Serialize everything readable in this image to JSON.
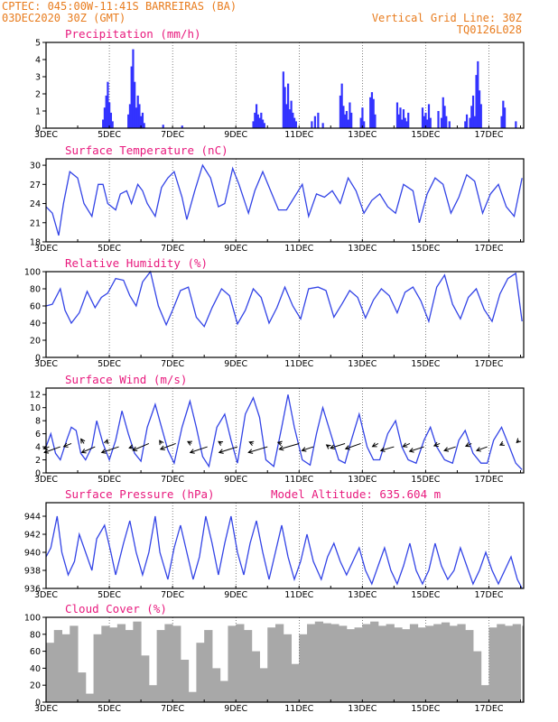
{
  "header": {
    "station": "CPTEC:  045:00W-11:41S  BARREIRAS (BA)",
    "run": "03DEC2020 30Z (GMT)",
    "grid_note": "Vertical Grid Line: 30Z",
    "code": "TQ0126L028"
  },
  "colors": {
    "series": "#3344e6",
    "bars": "#3333ff",
    "cloud": "#a8a8a8",
    "title": "#e8197d",
    "header": "#e87c1e"
  },
  "x_axis": {
    "labels": [
      "3DEC",
      "5DEC",
      "7DEC",
      "9DEC",
      "11DEC",
      "13DEC",
      "15DEC",
      "17DEC"
    ],
    "label_days": [
      0,
      2,
      4,
      6,
      8,
      10,
      12,
      14
    ],
    "range_days": [
      0,
      15.1
    ]
  },
  "chart_data": [
    {
      "type": "bar",
      "title": "Precipitation (mm/h)",
      "ylim": [
        0,
        5
      ],
      "yticks": [
        "0",
        "1",
        "2",
        "3",
        "4",
        "5"
      ],
      "x": [
        1.8,
        1.85,
        1.9,
        1.95,
        2.0,
        2.05,
        2.1,
        2.6,
        2.65,
        2.7,
        2.75,
        2.8,
        2.85,
        2.9,
        2.95,
        3.0,
        3.05,
        3.1,
        3.7,
        4.3,
        6.55,
        6.6,
        6.65,
        6.7,
        6.75,
        6.8,
        6.85,
        6.9,
        7.5,
        7.55,
        7.6,
        7.65,
        7.7,
        7.75,
        7.8,
        7.85,
        7.9,
        8.4,
        8.5,
        8.6,
        8.75,
        9.3,
        9.35,
        9.4,
        9.45,
        9.5,
        9.55,
        9.6,
        9.65,
        9.95,
        10.0,
        10.05,
        10.25,
        10.3,
        10.35,
        10.4,
        11.1,
        11.15,
        11.2,
        11.25,
        11.3,
        11.35,
        11.4,
        11.45,
        11.9,
        11.95,
        12.0,
        12.05,
        12.1,
        12.15,
        12.4,
        12.5,
        12.55,
        12.6,
        12.65,
        12.75,
        13.25,
        13.3,
        13.4,
        13.45,
        13.5,
        13.55,
        13.6,
        13.65,
        13.7,
        13.75,
        14.4,
        14.45,
        14.5,
        14.85
      ],
      "values": [
        0.5,
        1.2,
        1.9,
        2.7,
        1.5,
        0.9,
        0.4,
        0.8,
        1.4,
        3.6,
        4.6,
        2.7,
        1.2,
        1.9,
        1.4,
        0.7,
        0.9,
        0.3,
        0.2,
        0.15,
        0.4,
        0.9,
        1.4,
        0.8,
        0.6,
        0.9,
        0.5,
        0.3,
        3.3,
        2.4,
        1.4,
        2.6,
        1.1,
        1.6,
        0.9,
        0.6,
        0.4,
        0.4,
        0.7,
        0.9,
        0.3,
        1.9,
        2.6,
        1.3,
        0.8,
        1.0,
        0.5,
        1.5,
        0.9,
        0.6,
        1.2,
        0.4,
        1.8,
        2.1,
        1.7,
        0.8,
        1.5,
        0.8,
        1.2,
        0.5,
        1.1,
        0.6,
        0.4,
        0.9,
        1.2,
        0.7,
        0.9,
        0.5,
        1.4,
        0.6,
        1.0,
        0.6,
        1.8,
        1.3,
        0.7,
        0.4,
        0.4,
        0.8,
        0.6,
        1.3,
        1.9,
        0.7,
        3.1,
        3.9,
        2.2,
        1.4,
        0.7,
        1.6,
        1.2,
        0.4
      ]
    },
    {
      "type": "line",
      "title": "Surface Temperature (nC)",
      "ylim": [
        18,
        31
      ],
      "yticks": [
        "18",
        "21",
        "24",
        "27",
        "30"
      ],
      "x": [
        0,
        0.2,
        0.4,
        0.55,
        0.75,
        1.0,
        1.2,
        1.45,
        1.65,
        1.8,
        1.95,
        2.2,
        2.35,
        2.55,
        2.7,
        2.9,
        3.05,
        3.2,
        3.45,
        3.65,
        3.85,
        4.05,
        4.3,
        4.45,
        4.7,
        4.95,
        5.2,
        5.45,
        5.65,
        5.9,
        6.1,
        6.4,
        6.6,
        6.85,
        7.1,
        7.35,
        7.6,
        7.85,
        8.1,
        8.3,
        8.55,
        8.8,
        9.05,
        9.3,
        9.55,
        9.8,
        10.05,
        10.3,
        10.55,
        10.8,
        11.05,
        11.3,
        11.6,
        11.8,
        12.05,
        12.3,
        12.55,
        12.8,
        13.05,
        13.3,
        13.55,
        13.8,
        14.05,
        14.3,
        14.55,
        14.8,
        15.05
      ],
      "values": [
        23.5,
        22.5,
        19,
        24,
        29,
        28,
        24,
        22,
        27,
        27,
        24,
        23,
        25.5,
        26,
        24,
        27,
        26,
        24,
        22,
        26.5,
        28,
        29,
        25,
        21.5,
        26,
        30,
        28,
        23.5,
        24,
        29.5,
        27,
        22.5,
        26,
        29,
        26,
        23,
        23,
        25,
        27,
        22,
        25.5,
        25,
        26,
        24,
        28,
        26,
        22.5,
        24.5,
        25.5,
        23.5,
        22.5,
        27,
        26,
        21,
        25.5,
        28,
        27,
        22.5,
        25,
        28.5,
        27.5,
        22.5,
        25.5,
        27,
        23.5,
        22,
        28
      ]
    },
    {
      "type": "line",
      "title": "Relative Humidity (%)",
      "ylim": [
        0,
        100
      ],
      "yticks": [
        "0",
        "20",
        "40",
        "60",
        "80",
        "100"
      ],
      "x": [
        0,
        0.2,
        0.45,
        0.6,
        0.8,
        1.05,
        1.3,
        1.55,
        1.75,
        1.95,
        2.2,
        2.45,
        2.65,
        2.85,
        3.05,
        3.3,
        3.55,
        3.8,
        4.0,
        4.25,
        4.5,
        4.75,
        5.0,
        5.25,
        5.55,
        5.8,
        6.05,
        6.3,
        6.55,
        6.8,
        7.05,
        7.3,
        7.55,
        7.8,
        8.05,
        8.3,
        8.6,
        8.85,
        9.1,
        9.35,
        9.6,
        9.85,
        10.1,
        10.35,
        10.6,
        10.85,
        11.1,
        11.35,
        11.6,
        11.85,
        12.1,
        12.35,
        12.6,
        12.85,
        13.1,
        13.35,
        13.6,
        13.85,
        14.1,
        14.35,
        14.6,
        14.85,
        15.05
      ],
      "values": [
        60,
        62,
        80,
        55,
        40,
        52,
        77,
        58,
        70,
        75,
        92,
        90,
        72,
        60,
        88,
        100,
        60,
        38,
        55,
        78,
        82,
        47,
        36,
        58,
        80,
        72,
        39,
        55,
        80,
        70,
        40,
        58,
        82,
        60,
        45,
        80,
        82,
        78,
        47,
        62,
        78,
        70,
        46,
        67,
        80,
        72,
        52,
        76,
        82,
        66,
        42,
        82,
        96,
        62,
        45,
        70,
        80,
        56,
        42,
        74,
        92,
        98,
        42
      ]
    },
    {
      "type": "line",
      "title": "Surface Wind (m/s)",
      "ylim": [
        0,
        13
      ],
      "yticks": [
        "0",
        "2",
        "4",
        "6",
        "8",
        "10",
        "12"
      ],
      "x": [
        0,
        0.15,
        0.3,
        0.45,
        0.65,
        0.8,
        0.95,
        1.1,
        1.25,
        1.45,
        1.6,
        1.8,
        2.0,
        2.2,
        2.4,
        2.6,
        2.8,
        3.0,
        3.2,
        3.45,
        3.65,
        3.85,
        4.05,
        4.3,
        4.55,
        4.75,
        4.95,
        5.15,
        5.4,
        5.65,
        5.85,
        6.05,
        6.3,
        6.55,
        6.75,
        6.95,
        7.2,
        7.45,
        7.65,
        7.85,
        8.1,
        8.35,
        8.55,
        8.75,
        9.0,
        9.25,
        9.45,
        9.65,
        9.9,
        10.15,
        10.35,
        10.55,
        10.8,
        11.05,
        11.25,
        11.45,
        11.7,
        11.95,
        12.15,
        12.35,
        12.6,
        12.85,
        13.05,
        13.25,
        13.5,
        13.75,
        13.95,
        14.15,
        14.4,
        14.65,
        14.85,
        15.05
      ],
      "values": [
        4,
        6,
        3,
        2,
        5,
        7,
        6.5,
        3,
        2,
        4,
        8,
        4.5,
        2,
        5,
        9.5,
        6,
        3,
        1.8,
        7,
        10.5,
        7,
        3.5,
        1.5,
        7,
        11,
        7,
        2.5,
        1,
        7,
        9,
        5,
        1.5,
        9,
        11.5,
        8.5,
        2,
        1,
        7,
        12,
        7,
        2,
        1.2,
        6,
        10,
        6,
        2,
        1.5,
        5,
        9,
        4,
        2,
        2,
        6,
        8,
        4,
        2,
        1.5,
        5,
        7,
        4,
        2,
        1.5,
        5,
        6.5,
        3,
        1.5,
        1.5,
        5,
        7,
        4,
        1.5,
        0.5
      ]
    },
    {
      "type": "line",
      "title": "Surface Pressure (hPa)",
      "subtitle": "Model Altitude: 635.604 m",
      "ylim": [
        936,
        945.5
      ],
      "yticks": [
        "936",
        "938",
        "940",
        "942",
        "944"
      ],
      "x": [
        0,
        0.15,
        0.35,
        0.5,
        0.7,
        0.9,
        1.05,
        1.25,
        1.45,
        1.6,
        1.85,
        2.05,
        2.2,
        2.45,
        2.65,
        2.85,
        3.05,
        3.25,
        3.45,
        3.6,
        3.85,
        4.05,
        4.25,
        4.45,
        4.65,
        4.85,
        5.05,
        5.25,
        5.45,
        5.65,
        5.85,
        6.05,
        6.25,
        6.45,
        6.65,
        6.85,
        7.05,
        7.25,
        7.45,
        7.65,
        7.85,
        8.05,
        8.25,
        8.45,
        8.7,
        8.9,
        9.1,
        9.3,
        9.5,
        9.7,
        9.9,
        10.1,
        10.3,
        10.5,
        10.7,
        10.9,
        11.1,
        11.3,
        11.5,
        11.7,
        11.9,
        12.1,
        12.3,
        12.5,
        12.7,
        12.9,
        13.1,
        13.3,
        13.5,
        13.7,
        13.9,
        14.1,
        14.3,
        14.5,
        14.7,
        14.9,
        15.05
      ],
      "values": [
        939.5,
        940.5,
        944,
        940,
        937.5,
        939,
        942,
        940,
        938,
        941.5,
        943,
        940,
        937.5,
        941,
        943.5,
        940,
        937.5,
        940,
        944,
        940,
        937,
        940.5,
        943,
        940,
        937,
        939.5,
        944,
        941,
        937.5,
        941,
        944,
        940,
        937.5,
        941,
        943.5,
        940,
        937,
        940,
        943,
        939.5,
        937,
        939,
        942,
        939,
        937,
        939.5,
        941,
        939,
        937.5,
        939,
        940.5,
        938,
        936.5,
        938.5,
        940.5,
        938,
        936.5,
        938.5,
        941,
        938,
        936.5,
        938,
        941,
        938.5,
        937,
        938,
        940.5,
        938.5,
        936.5,
        938,
        940,
        938,
        936.5,
        938,
        939.5,
        937,
        936
      ]
    },
    {
      "type": "area",
      "title": "Cloud Cover (%)",
      "ylim": [
        0,
        100
      ],
      "yticks": [
        "0",
        "20",
        "40",
        "60",
        "80",
        "100"
      ],
      "x": [
        0,
        0.25,
        0.5,
        0.75,
        1.0,
        1.25,
        1.5,
        1.75,
        2.0,
        2.25,
        2.5,
        2.75,
        3.0,
        3.25,
        3.5,
        3.75,
        4.0,
        4.25,
        4.5,
        4.75,
        5.0,
        5.25,
        5.5,
        5.75,
        6.0,
        6.25,
        6.5,
        6.75,
        7.0,
        7.25,
        7.5,
        7.75,
        8.0,
        8.25,
        8.5,
        8.75,
        9.0,
        9.25,
        9.5,
        9.75,
        10.0,
        10.25,
        10.5,
        10.75,
        11.0,
        11.25,
        11.5,
        11.75,
        12.0,
        12.25,
        12.5,
        12.75,
        13.0,
        13.25,
        13.5,
        13.75,
        14.0,
        14.25,
        14.5,
        14.75,
        15.05
      ],
      "values": [
        70,
        85,
        80,
        90,
        35,
        10,
        80,
        90,
        88,
        92,
        85,
        95,
        55,
        20,
        85,
        92,
        90,
        50,
        12,
        70,
        85,
        40,
        25,
        90,
        92,
        85,
        60,
        40,
        88,
        92,
        80,
        45,
        80,
        92,
        95,
        93,
        92,
        90,
        86,
        88,
        92,
        95,
        90,
        92,
        88,
        86,
        92,
        88,
        90,
        92,
        94,
        90,
        92,
        85,
        60,
        20,
        88,
        92,
        90,
        92,
        90
      ]
    }
  ],
  "wind_vectors": {
    "x": [
      0.1,
      0.45,
      0.8,
      1.2,
      1.55,
      1.9,
      2.3,
      2.75,
      3.25,
      3.65,
      4.1,
      4.6,
      5.1,
      5.55,
      6.05,
      6.55,
      7.0,
      7.45,
      8.0,
      8.45,
      8.95,
      9.45,
      9.95,
      10.5,
      11.0,
      11.5,
      11.95,
      12.45,
      12.95,
      13.45,
      13.95,
      14.45,
      14.95
    ],
    "values": [
      4,
      4,
      4.5,
      4.5,
      4,
      4.5,
      4,
      4,
      4.5,
      4.5,
      4.5,
      4.5,
      4,
      4.5,
      4,
      4.5,
      4,
      4.5,
      4.5,
      4,
      4,
      4.5,
      4.5,
      4.5,
      4,
      4.5,
      4,
      4.5,
      4,
      4.5,
      4,
      4.5,
      5
    ],
    "u": [
      -1.5,
      -4.2,
      -2,
      -0.8,
      -3.5,
      0.3,
      -4.5,
      -1,
      -4.2,
      -0.5,
      -4,
      -1,
      -4.5,
      -0.8,
      -4.8,
      -1,
      -5,
      -1,
      -5.2,
      -3,
      -0.7,
      -3.8,
      -4,
      -1.5,
      -3.5,
      -1.8,
      -3.8,
      -1.5,
      -3,
      -1.5,
      -2.8,
      -0.8,
      -0.6
    ],
    "v": [
      -0.5,
      -1.5,
      -0.8,
      1.2,
      -1.5,
      1.0,
      -1.5,
      -0.3,
      -1.8,
      0.8,
      -1.5,
      0.5,
      -1.5,
      0.5,
      -1.5,
      0.4,
      -1.5,
      0.3,
      -1.5,
      -1.0,
      0.5,
      -1.2,
      -1.4,
      -0.8,
      -1.0,
      -0.8,
      -1.2,
      -0.6,
      -1.0,
      -0.7,
      -1.0,
      -0.4,
      -0.6
    ]
  }
}
